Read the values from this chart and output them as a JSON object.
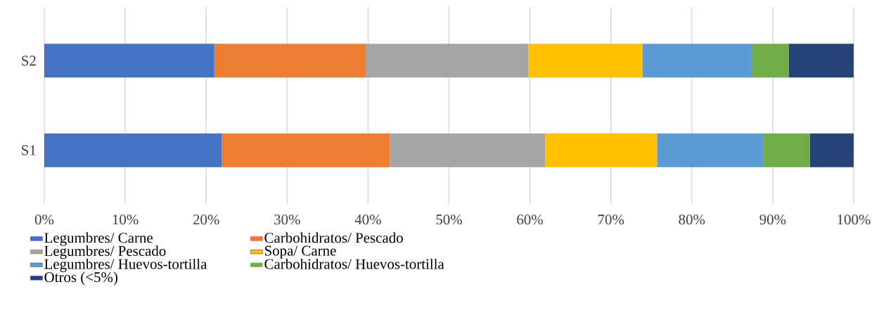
{
  "chart_data": {
    "type": "bar",
    "orientation": "horizontal",
    "stacked": true,
    "categories": [
      "S2",
      "S1"
    ],
    "series": [
      {
        "name": "Legumbres/ Carne",
        "color": "#4472c4",
        "values": [
          21.0,
          21.9
        ]
      },
      {
        "name": "Carbohidratos/ Pescado",
        "color": "#ed7d31",
        "values": [
          18.7,
          20.8
        ]
      },
      {
        "name": "Legumbres/ Pescado",
        "color": "#a5a5a5",
        "values": [
          20.1,
          19.2
        ]
      },
      {
        "name": "Sopa/ Carne",
        "color": "#ffc000",
        "values": [
          14.1,
          13.8
        ]
      },
      {
        "name": "Legumbres/ Huevos-tortilla",
        "color": "#5b9bd5",
        "values": [
          13.5,
          13.1
        ]
      },
      {
        "name": "Carbohidratos/ Huevos-tortilla",
        "color": "#70ad47",
        "values": [
          4.6,
          5.8
        ]
      },
      {
        "name": "Otros (<5%)",
        "color": "#264478",
        "values": [
          8.0,
          5.4
        ]
      }
    ],
    "xlim": [
      0,
      100
    ],
    "xticks": [
      {
        "value": 0,
        "label": "0%"
      },
      {
        "value": 10,
        "label": "10%"
      },
      {
        "value": 20,
        "label": "20%"
      },
      {
        "value": 30,
        "label": "30%"
      },
      {
        "value": 40,
        "label": "40%"
      },
      {
        "value": 50,
        "label": "50%"
      },
      {
        "value": 60,
        "label": "60%"
      },
      {
        "value": 70,
        "label": "70%"
      },
      {
        "value": 80,
        "label": "80%"
      },
      {
        "value": 90,
        "label": "90%"
      },
      {
        "value": 100,
        "label": "100%"
      }
    ],
    "grid": "x",
    "legend": "bottom"
  }
}
